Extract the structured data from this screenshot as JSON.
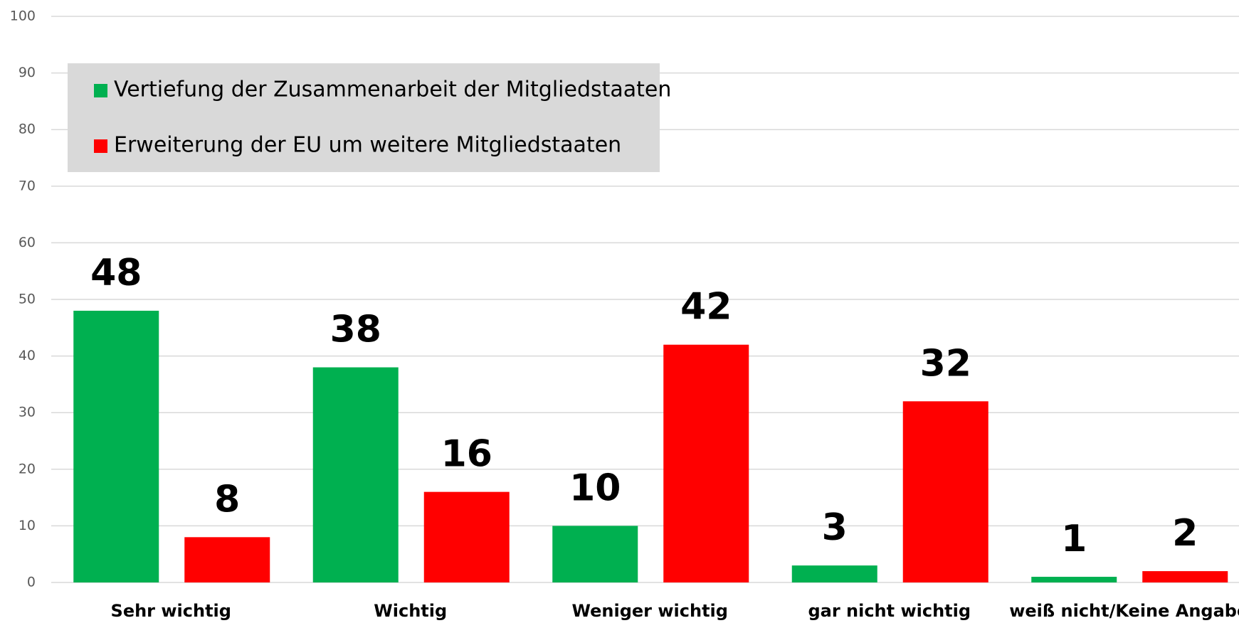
{
  "chart_data": {
    "type": "bar",
    "categories": [
      "Sehr wichtig",
      "Wichtig",
      "Weniger wichtig",
      "gar nicht wichtig",
      "weiß nicht/Keine Angabe"
    ],
    "series": [
      {
        "name": "Vertiefung der Zusammenarbeit der Mitgliedstaaten",
        "color": "#00b050",
        "values": [
          48,
          38,
          10,
          3,
          1
        ]
      },
      {
        "name": "Erweiterung der EU um weitere Mitgliedstaaten",
        "color": "#ff0000",
        "values": [
          8,
          16,
          42,
          32,
          2
        ]
      }
    ],
    "ylim": [
      0,
      100
    ],
    "yticks": [
      0,
      10,
      20,
      30,
      40,
      50,
      60,
      70,
      80,
      90,
      100
    ],
    "grid": true,
    "legend": "upper left"
  }
}
